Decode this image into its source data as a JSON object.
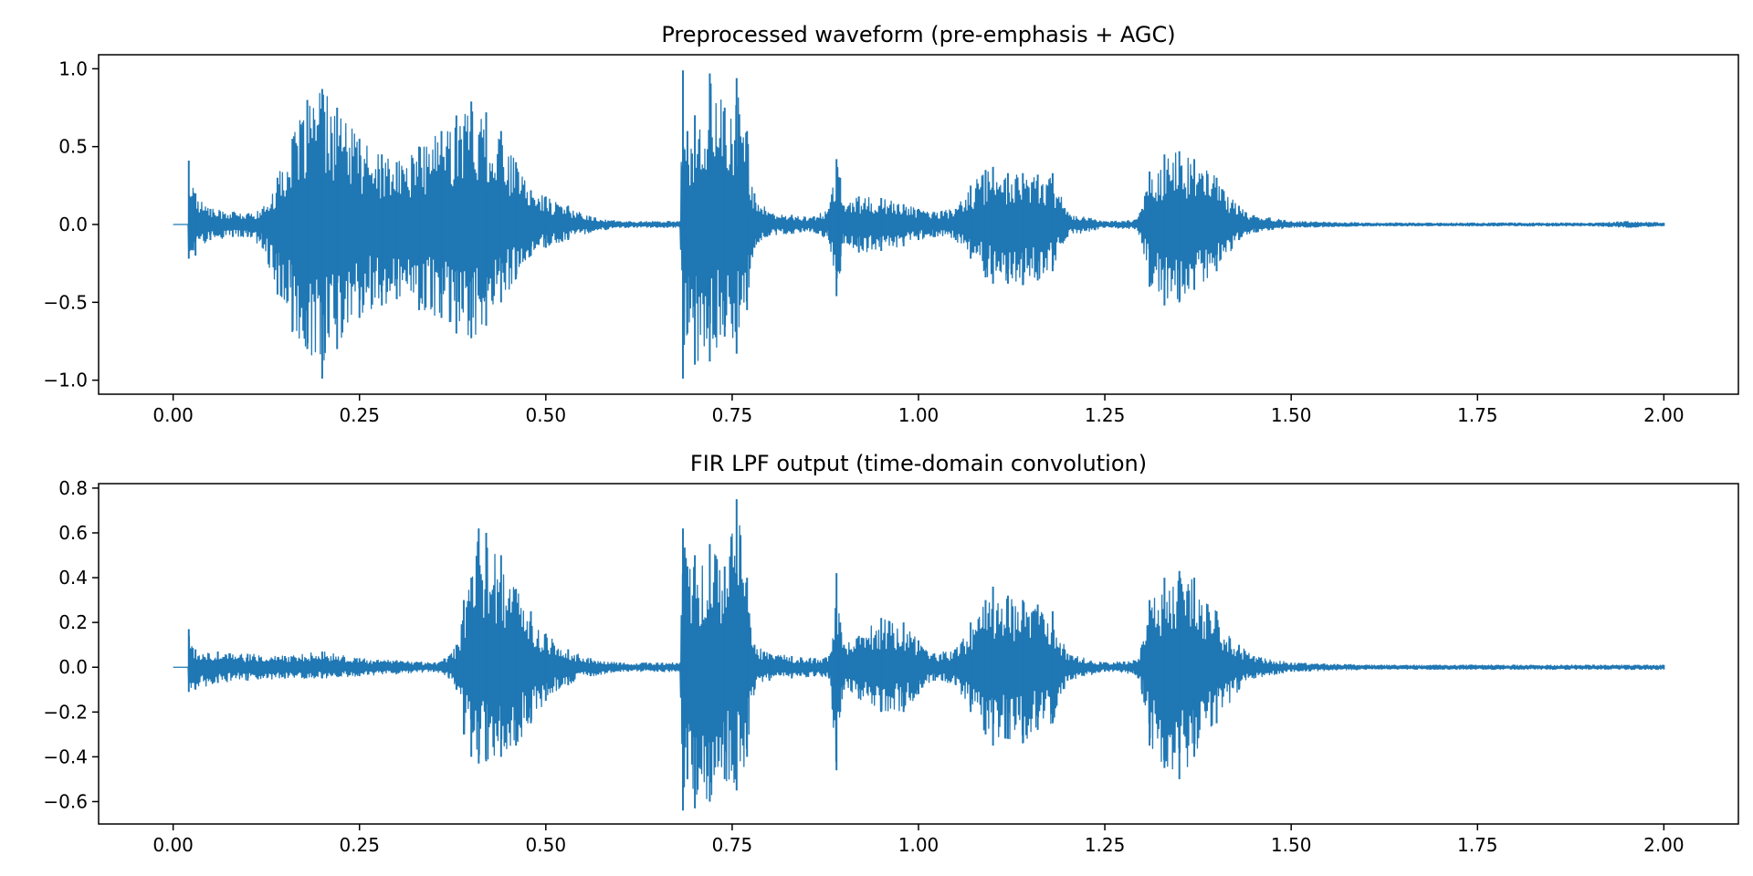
{
  "chart_data": [
    {
      "type": "line",
      "title": "Preprocessed waveform (pre-emphasis + AGC)",
      "xlabel": "",
      "ylabel": "",
      "xlim": [
        -0.1,
        2.1
      ],
      "ylim": [
        -1.09,
        1.09
      ],
      "xticks": [
        0.0,
        0.25,
        0.5,
        0.75,
        1.0,
        1.25,
        1.5,
        1.75,
        2.0
      ],
      "xtick_labels": [
        "0.00",
        "0.25",
        "0.50",
        "0.75",
        "1.00",
        "1.25",
        "1.50",
        "1.75",
        "2.00"
      ],
      "yticks": [
        1.0,
        0.5,
        0.0,
        -0.5,
        -1.0
      ],
      "ytick_labels": [
        "1.0",
        "0.5",
        "0.0",
        "−0.5",
        "−1.0"
      ],
      "grid": false,
      "line_color": "#1f77b4",
      "series": [
        {
          "x": [
            0.0,
            0.02,
            0.021,
            0.03,
            0.05,
            0.08,
            0.1,
            0.12,
            0.14,
            0.16,
            0.18,
            0.2,
            0.22,
            0.25,
            0.28,
            0.3,
            0.33,
            0.36,
            0.38,
            0.4,
            0.42,
            0.44,
            0.46,
            0.48,
            0.5,
            0.53,
            0.56,
            0.6,
            0.65,
            0.68,
            0.684,
            0.69,
            0.7,
            0.72,
            0.74,
            0.756,
            0.77,
            0.78,
            0.8,
            0.83,
            0.86,
            0.88,
            0.89,
            0.895,
            0.9,
            0.92,
            0.95,
            0.98,
            1.0,
            1.02,
            1.05,
            1.07,
            1.09,
            1.1,
            1.12,
            1.14,
            1.16,
            1.18,
            1.2,
            1.25,
            1.29,
            1.3,
            1.31,
            1.33,
            1.35,
            1.37,
            1.4,
            1.43,
            1.45,
            1.5,
            1.6,
            1.7,
            1.8,
            1.9,
            1.95,
            2.0
          ],
          "y_max": [
            0.0,
            0.0,
            0.41,
            0.2,
            0.1,
            0.08,
            0.07,
            0.1,
            0.3,
            0.55,
            0.8,
            0.87,
            0.75,
            0.55,
            0.45,
            0.4,
            0.5,
            0.6,
            0.7,
            0.79,
            0.72,
            0.6,
            0.4,
            0.22,
            0.18,
            0.12,
            0.05,
            0.02,
            0.02,
            0.02,
            0.99,
            0.6,
            0.7,
            0.97,
            0.75,
            0.94,
            0.6,
            0.2,
            0.07,
            0.06,
            0.05,
            0.1,
            0.42,
            0.3,
            0.12,
            0.18,
            0.17,
            0.13,
            0.1,
            0.08,
            0.1,
            0.25,
            0.35,
            0.37,
            0.33,
            0.33,
            0.32,
            0.33,
            0.08,
            0.02,
            0.03,
            0.1,
            0.34,
            0.45,
            0.47,
            0.42,
            0.3,
            0.12,
            0.06,
            0.02,
            0.01,
            0.01,
            0.01,
            0.01,
            0.02,
            0.01
          ],
          "y_min": [
            0.0,
            0.0,
            -0.22,
            -0.2,
            -0.1,
            -0.08,
            -0.08,
            -0.15,
            -0.45,
            -0.69,
            -0.8,
            -0.99,
            -0.8,
            -0.6,
            -0.52,
            -0.48,
            -0.55,
            -0.6,
            -0.7,
            -0.73,
            -0.65,
            -0.5,
            -0.35,
            -0.2,
            -0.15,
            -0.1,
            -0.05,
            -0.02,
            -0.02,
            -0.02,
            -0.99,
            -0.7,
            -0.9,
            -0.88,
            -0.72,
            -0.83,
            -0.55,
            -0.15,
            -0.07,
            -0.06,
            -0.05,
            -0.1,
            -0.46,
            -0.3,
            -0.12,
            -0.18,
            -0.17,
            -0.14,
            -0.1,
            -0.08,
            -0.1,
            -0.22,
            -0.34,
            -0.38,
            -0.38,
            -0.39,
            -0.36,
            -0.3,
            -0.08,
            -0.02,
            -0.03,
            -0.12,
            -0.4,
            -0.52,
            -0.5,
            -0.42,
            -0.3,
            -0.1,
            -0.05,
            -0.02,
            -0.01,
            -0.01,
            -0.01,
            -0.01,
            -0.02,
            -0.01
          ]
        }
      ]
    },
    {
      "type": "line",
      "title": "FIR LPF output (time-domain convolution)",
      "xlabel": "",
      "ylabel": "",
      "xlim": [
        -0.1,
        2.1
      ],
      "ylim": [
        -0.7,
        0.82
      ],
      "xticks": [
        0.0,
        0.25,
        0.5,
        0.75,
        1.0,
        1.25,
        1.5,
        1.75,
        2.0
      ],
      "xtick_labels": [
        "0.00",
        "0.25",
        "0.50",
        "0.75",
        "1.00",
        "1.25",
        "1.50",
        "1.75",
        "2.00"
      ],
      "yticks": [
        0.8,
        0.6,
        0.4,
        0.2,
        0.0,
        -0.2,
        -0.4,
        -0.6
      ],
      "ytick_labels": [
        "0.8",
        "0.6",
        "0.4",
        "0.2",
        "0.0",
        "−0.2",
        "−0.4",
        "−0.6"
      ],
      "grid": false,
      "line_color": "#1f77b4",
      "series": [
        {
          "x": [
            0.0,
            0.02,
            0.021,
            0.03,
            0.06,
            0.1,
            0.15,
            0.2,
            0.25,
            0.3,
            0.35,
            0.37,
            0.38,
            0.39,
            0.4,
            0.41,
            0.42,
            0.44,
            0.46,
            0.48,
            0.5,
            0.53,
            0.56,
            0.6,
            0.65,
            0.68,
            0.684,
            0.69,
            0.7,
            0.72,
            0.74,
            0.756,
            0.77,
            0.78,
            0.8,
            0.83,
            0.86,
            0.88,
            0.89,
            0.895,
            0.9,
            0.92,
            0.95,
            0.98,
            1.0,
            1.02,
            1.05,
            1.07,
            1.09,
            1.1,
            1.12,
            1.14,
            1.16,
            1.18,
            1.2,
            1.25,
            1.29,
            1.3,
            1.31,
            1.33,
            1.35,
            1.37,
            1.4,
            1.43,
            1.45,
            1.5,
            1.6,
            1.7,
            1.8,
            1.9,
            1.95,
            2.0
          ],
          "y_max": [
            0.0,
            0.0,
            0.17,
            0.08,
            0.07,
            0.06,
            0.05,
            0.07,
            0.04,
            0.03,
            0.02,
            0.05,
            0.1,
            0.3,
            0.4,
            0.62,
            0.6,
            0.5,
            0.35,
            0.25,
            0.15,
            0.08,
            0.04,
            0.02,
            0.02,
            0.02,
            0.62,
            0.45,
            0.5,
            0.55,
            0.45,
            0.75,
            0.4,
            0.1,
            0.06,
            0.05,
            0.04,
            0.05,
            0.42,
            0.2,
            0.1,
            0.14,
            0.22,
            0.2,
            0.12,
            0.06,
            0.08,
            0.2,
            0.3,
            0.36,
            0.32,
            0.3,
            0.28,
            0.25,
            0.06,
            0.02,
            0.03,
            0.1,
            0.3,
            0.4,
            0.43,
            0.4,
            0.25,
            0.1,
            0.05,
            0.02,
            0.01,
            0.01,
            0.01,
            0.01,
            0.01,
            0.01
          ],
          "y_min": [
            0.0,
            0.0,
            -0.11,
            -0.1,
            -0.07,
            -0.06,
            -0.05,
            -0.05,
            -0.04,
            -0.03,
            -0.02,
            -0.05,
            -0.1,
            -0.3,
            -0.4,
            -0.43,
            -0.42,
            -0.4,
            -0.35,
            -0.25,
            -0.15,
            -0.08,
            -0.04,
            -0.02,
            -0.02,
            -0.02,
            -0.64,
            -0.5,
            -0.63,
            -0.6,
            -0.5,
            -0.55,
            -0.4,
            -0.1,
            -0.06,
            -0.05,
            -0.04,
            -0.05,
            -0.46,
            -0.2,
            -0.1,
            -0.14,
            -0.2,
            -0.2,
            -0.12,
            -0.06,
            -0.08,
            -0.2,
            -0.3,
            -0.35,
            -0.32,
            -0.34,
            -0.28,
            -0.25,
            -0.06,
            -0.02,
            -0.03,
            -0.12,
            -0.35,
            -0.45,
            -0.5,
            -0.4,
            -0.25,
            -0.1,
            -0.05,
            -0.02,
            -0.01,
            -0.01,
            -0.01,
            -0.01,
            -0.01,
            -0.01
          ]
        }
      ]
    }
  ]
}
